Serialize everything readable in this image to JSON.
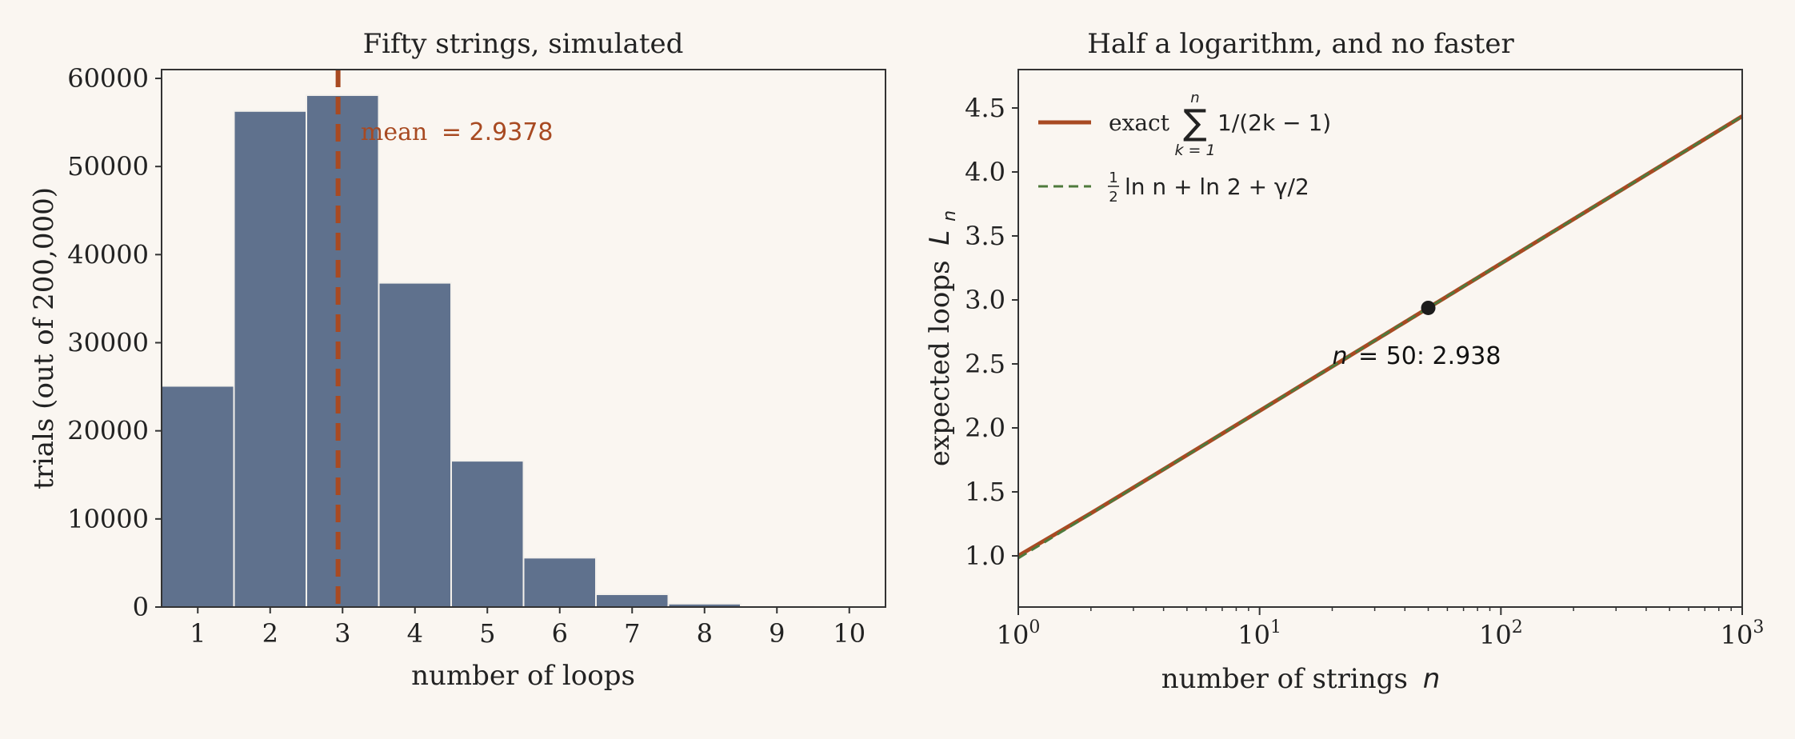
{
  "colors": {
    "background": "#faf6f1",
    "bar_fill": "#5f718d",
    "bar_edge": "#f4f1ec",
    "mean_line": "#a84a22",
    "exact_line": "#a84a22",
    "approx_line": "#4e7a3c",
    "marker": "#1c1c1c",
    "axis": "#333333",
    "text": "#222222"
  },
  "chart_data": [
    {
      "type": "bar",
      "title": "Fifty strings, simulated",
      "xlabel": "number of loops",
      "ylabel": "trials (out of 200,000)",
      "categories": [
        "1",
        "2",
        "3",
        "4",
        "5",
        "6",
        "7",
        "8",
        "9",
        "10"
      ],
      "x": [
        1,
        2,
        3,
        4,
        5,
        6,
        7,
        8,
        9,
        10
      ],
      "values": [
        25100,
        56300,
        58100,
        36800,
        16600,
        5600,
        1450,
        380,
        70,
        15
      ],
      "xlim": [
        0.5,
        10.5
      ],
      "ylim": [
        0,
        61000
      ],
      "yticks": [
        0,
        10000,
        20000,
        30000,
        40000,
        50000,
        60000
      ],
      "ytick_labels": [
        "0",
        "10000",
        "20000",
        "30000",
        "40000",
        "50000",
        "60000"
      ],
      "mean": 2.9378,
      "annotation": {
        "label": "mean",
        "value_text": "= 2.9378",
        "x": 3.25,
        "y": 53000
      }
    },
    {
      "type": "line",
      "title": "Half a logarithm, and no faster",
      "xlabel": "number of strings",
      "xlabel_var": "n",
      "ylabel": "expected loops",
      "ylabel_var": "L",
      "ylabel_sub": "n",
      "xscale": "log",
      "xlim": [
        1,
        1000
      ],
      "ylim": [
        0.6,
        4.8
      ],
      "yticks": [
        1.0,
        1.5,
        2.0,
        2.5,
        3.0,
        3.5,
        4.0,
        4.5
      ],
      "ytick_labels": [
        "1.0",
        "1.5",
        "2.0",
        "2.5",
        "3.0",
        "3.5",
        "4.0",
        "4.5"
      ],
      "xticks": [
        1,
        10,
        100,
        1000
      ],
      "xtick_base": "10",
      "xtick_exponents": [
        "0",
        "1",
        "2",
        "3"
      ],
      "series": [
        {
          "legend_text": "exact",
          "formula": "1/(2k − 1)",
          "sum_upper": "n",
          "sum_lower": "k = 1",
          "style": "solid"
        },
        {
          "legend_frac_num": "1",
          "legend_frac_den": "2",
          "legend_text": "ln n + ln 2 + γ/2",
          "style": "dashed"
        }
      ],
      "marker_point": {
        "x": 50,
        "y": 2.9378
      },
      "annotation": {
        "var": "n",
        "text": "= 50:  2.938",
        "x": 20,
        "y": 2.5
      },
      "legend_location": "upper-left"
    }
  ]
}
